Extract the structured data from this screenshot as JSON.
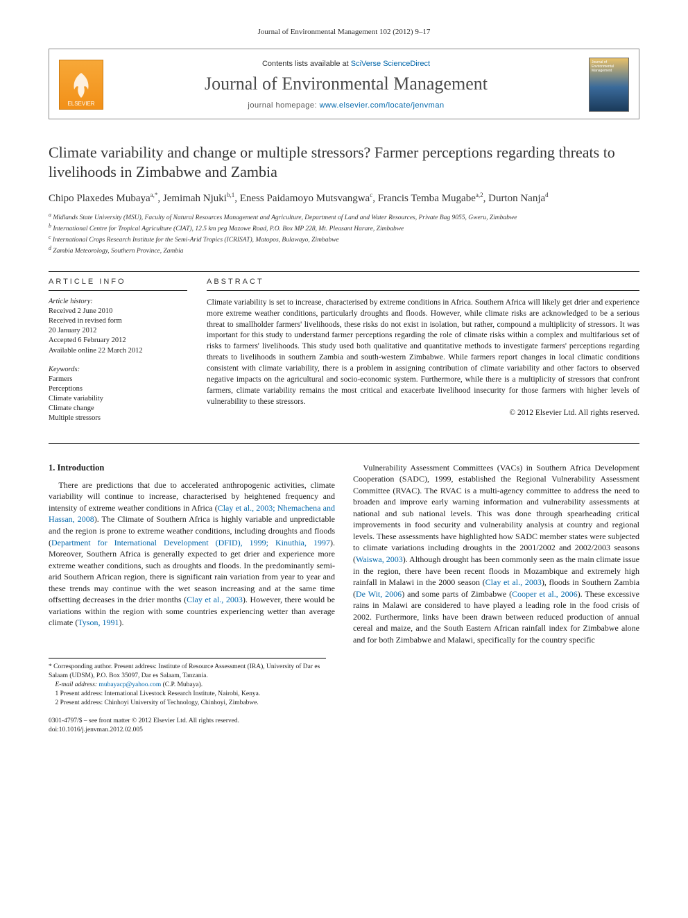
{
  "running_head": "Journal of Environmental Management 102 (2012) 9–17",
  "header": {
    "publisher_name": "ELSEVIER",
    "contents_prefix": "Contents lists available at ",
    "contents_link": "SciVerse ScienceDirect",
    "journal_name": "Journal of Environmental Management",
    "homepage_prefix": "journal homepage: ",
    "homepage_url": "www.elsevier.com/locate/jenvman",
    "cover_text": "Journal of Environmental Management"
  },
  "article": {
    "title": "Climate variability and change or multiple stressors? Farmer perceptions regarding threats to livelihoods in Zimbabwe and Zambia",
    "authors_html": "Chipo Plaxedes Mubaya<sup>a,*</sup>, Jemimah Njuki<sup>b,1</sup>, Eness Paidamoyo Mutsvangwa<sup>c</sup>, Francis Temba Mugabe<sup>a,2</sup>, Durton Nanja<sup>d</sup>",
    "affiliations": [
      "a Midlands State University (MSU), Faculty of Natural Resources Management and Agriculture, Department of Land and Water Resources, Private Bag 9055, Gweru, Zimbabwe",
      "b International Centre for Tropical Agriculture (CIAT), 12.5 km peg Mazowe Road, P.O. Box MP 228, Mt. Pleasant Harare, Zimbabwe",
      "c International Crops Research Institute for the Semi-Arid Tropics (ICRISAT), Matopos, Bulawayo, Zimbabwe",
      "d Zambia Meteorology, Southern Province, Zambia"
    ]
  },
  "info": {
    "head": "ARTICLE INFO",
    "history_label": "Article history:",
    "history": [
      "Received 2 June 2010",
      "Received in revised form",
      "20 January 2012",
      "Accepted 6 February 2012",
      "Available online 22 March 2012"
    ],
    "keywords_label": "Keywords:",
    "keywords": [
      "Farmers",
      "Perceptions",
      "Climate variability",
      "Climate change",
      "Multiple stressors"
    ]
  },
  "abstract": {
    "head": "ABSTRACT",
    "text": "Climate variability is set to increase, characterised by extreme conditions in Africa. Southern Africa will likely get drier and experience more extreme weather conditions, particularly droughts and floods. However, while climate risks are acknowledged to be a serious threat to smallholder farmers' livelihoods, these risks do not exist in isolation, but rather, compound a multiplicity of stressors. It was important for this study to understand farmer perceptions regarding the role of climate risks within a complex and multifarious set of risks to farmers' livelihoods. This study used both qualitative and quantitative methods to investigate farmers' perceptions regarding threats to livelihoods in southern Zambia and south-western Zimbabwe. While farmers report changes in local climatic conditions consistent with climate variability, there is a problem in assigning contribution of climate variability and other factors to observed negative impacts on the agricultural and socio-economic system. Furthermore, while there is a multiplicity of stressors that confront farmers, climate variability remains the most critical and exacerbate livelihood insecurity for those farmers with higher levels of vulnerability to these stressors.",
    "copyright": "© 2012 Elsevier Ltd. All rights reserved."
  },
  "body": {
    "heading_1": "1. Introduction",
    "p1a": "There are predictions that due to accelerated anthropogenic activities, climate variability will continue to increase, characterised by heightened frequency and intensity of extreme weather conditions in Africa (",
    "c1": "Clay et al., 2003; Nhemachena and Hassan, 2008",
    "p1b": "). The Climate of Southern Africa is highly variable and unpredictable and the region is prone to extreme weather conditions, including droughts and floods (",
    "c2": "Department for International Development (DFID), 1999; Kinuthia, 1997",
    "p1c": "). Moreover, Southern Africa is generally expected to get drier and experience more extreme weather conditions, such as droughts and floods. In the predominantly semi-arid Southern African region, there is significant rain variation from year to year and these trends may continue with the wet season increasing and at the same time offsetting decreases in the drier months (",
    "c3": "Clay et al., 2003",
    "p1d": "). However, there would be variations within the region with some countries experiencing wetter than average climate (",
    "c4": "Tyson, 1991",
    "p1e": ").",
    "p2a": "Vulnerability Assessment Committees (VACs) in Southern Africa Development Cooperation (SADC), 1999, established the Regional Vulnerability Assessment Committee (RVAC). The RVAC is a multi-agency committee to address the need to broaden and improve early warning information and vulnerability assessments at national and sub national levels. This was done through spearheading critical improvements in food security and vulnerability analysis at country and regional levels. These assessments have highlighted how SADC member states were subjected to climate variations including droughts in the 2001/2002 and 2002/2003 seasons (",
    "c5": "Waiswa, 2003",
    "p2b": "). Although drought has been commonly seen as the main climate issue in the region, there have been recent floods in Mozambique and extremely high rainfall in Malawi in the 2000 season (",
    "c6": "Clay et al., 2003",
    "p2c": "), floods in Southern Zambia (",
    "c7": "De Wit, 2006",
    "p2d": ") and some parts of Zimbabwe (",
    "c8": "Cooper et al., 2006",
    "p2e": "). These excessive rains in Malawi are considered to have played a leading role in the food crisis of 2002. Furthermore, links have been drawn between reduced production of annual cereal and maize, and the South Eastern African rainfall index for Zimbabwe alone and for both Zimbabwe and Malawi, specifically for the country specific"
  },
  "footnotes": {
    "corresponding": "* Corresponding author. Present address: Institute of Resource Assessment (IRA), University of Dar es Salaam (UDSM), P.O. Box 35097, Dar es Salaam, Tanzania.",
    "email_label": "E-mail address: ",
    "email": "mubayacp@yahoo.com",
    "email_suffix": " (C.P. Mubaya).",
    "fn1": "1 Present address: International Livestock Research Institute, Nairobi, Kenya.",
    "fn2": "2 Present address: Chinhoyi University of Technology, Chinhoyi, Zimbabwe."
  },
  "footer": {
    "line1": "0301-4797/$ – see front matter © 2012 Elsevier Ltd. All rights reserved.",
    "line2": "doi:10.1016/j.jenvman.2012.02.005"
  },
  "colors": {
    "link": "#0066aa",
    "text": "#1a1a1a",
    "logo_bg_top": "#f7a838",
    "logo_bg_bottom": "#f29018"
  }
}
